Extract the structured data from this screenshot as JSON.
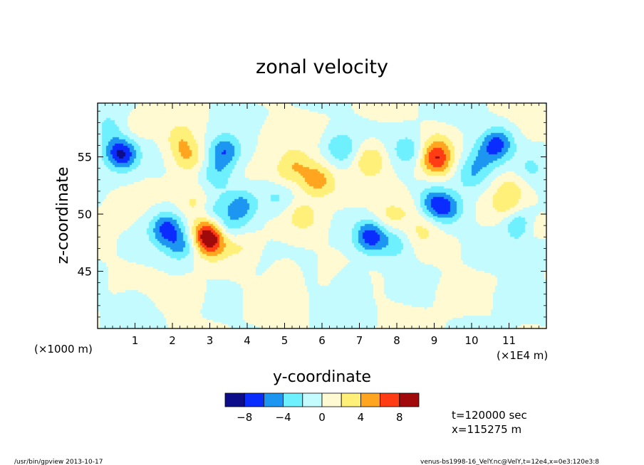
{
  "chart_data": {
    "type": "heatmap",
    "title": "zonal velocity",
    "xlabel": "y-coordinate",
    "ylabel": "z-coordinate",
    "x_unit_left": "(×1000 m)",
    "x_unit_right": "(×1E4 m)",
    "xlim": [
      0,
      12
    ],
    "ylim": [
      40,
      59.7
    ],
    "x_ticks": [
      1,
      2,
      3,
      4,
      5,
      6,
      7,
      8,
      9,
      10,
      11
    ],
    "y_ticks": [
      45,
      50,
      55
    ],
    "x_tick_labels": [
      "1",
      "2",
      "3",
      "4",
      "5",
      "6",
      "7",
      "8",
      "9",
      "10",
      "11"
    ],
    "y_tick_labels": [
      "45",
      "50",
      "55"
    ],
    "grid": false,
    "colorbar": {
      "bounds": [
        -10,
        -8,
        -6,
        -4,
        -2,
        0,
        2,
        4,
        6,
        8,
        10
      ],
      "colors": [
        "#0d0d8a",
        "#0a2cff",
        "#1c96f0",
        "#6ff0ff",
        "#c4fbff",
        "#fffad2",
        "#fff07a",
        "#ffa51f",
        "#ff3c14",
        "#a00a0a"
      ],
      "tick_values": [
        -8,
        -4,
        0,
        4,
        8
      ],
      "tick_labels": [
        "−8",
        "−4",
        "0",
        "4",
        "8"
      ]
    },
    "features": [
      {
        "y": 0.7,
        "z": 55.2,
        "amp": -6.5
      },
      {
        "y": 0.45,
        "z": 55.5,
        "amp": -3
      },
      {
        "y": 0.3,
        "z": 57.5,
        "amp": -2.5
      },
      {
        "y": 0.6,
        "z": 50.5,
        "amp": 1.5
      },
      {
        "y": 1.0,
        "z": 57.5,
        "amp": 1.2
      },
      {
        "y": 2.4,
        "z": 55.0,
        "amp": 4
      },
      {
        "y": 2.2,
        "z": 56.6,
        "amp": 3
      },
      {
        "y": 2.9,
        "z": 48.3,
        "amp": 6.5
      },
      {
        "y": 3.05,
        "z": 47.5,
        "amp": 5.5
      },
      {
        "y": 2.6,
        "z": 51.0,
        "amp": 2.5
      },
      {
        "y": 1.8,
        "z": 48.5,
        "amp": -4.5
      },
      {
        "y": 2.25,
        "z": 47.3,
        "amp": -4.5
      },
      {
        "y": 1.9,
        "z": 49.3,
        "amp": -2.5
      },
      {
        "y": 3.4,
        "z": 55.5,
        "amp": -6
      },
      {
        "y": 3.2,
        "z": 53.5,
        "amp": -3.5
      },
      {
        "y": 3.85,
        "z": 50.8,
        "amp": -4.5
      },
      {
        "y": 3.55,
        "z": 48.8,
        "amp": -3
      },
      {
        "y": 3.1,
        "z": 50.3,
        "amp": -2.2
      },
      {
        "y": 3.8,
        "z": 47.3,
        "amp": 2.2
      },
      {
        "y": 4.8,
        "z": 56.8,
        "amp": 1.2
      },
      {
        "y": 5.3,
        "z": 54.5,
        "amp": 3
      },
      {
        "y": 5.0,
        "z": 53.5,
        "amp": 2.2
      },
      {
        "y": 5.8,
        "z": 53.1,
        "amp": 5
      },
      {
        "y": 5.5,
        "z": 49.8,
        "amp": 2.8
      },
      {
        "y": 4.8,
        "z": 51.5,
        "amp": -2.5
      },
      {
        "y": 6.5,
        "z": 55.8,
        "amp": -4
      },
      {
        "y": 6.2,
        "z": 52.5,
        "amp": 1.5
      },
      {
        "y": 7.3,
        "z": 54.7,
        "amp": 4.2
      },
      {
        "y": 7.3,
        "z": 48.0,
        "amp": -7
      },
      {
        "y": 7.8,
        "z": 49.8,
        "amp": 2.5
      },
      {
        "y": 7.95,
        "z": 47.3,
        "amp": -3
      },
      {
        "y": 8.3,
        "z": 55.6,
        "amp": -3.5
      },
      {
        "y": 8.7,
        "z": 48.5,
        "amp": 2
      },
      {
        "y": 8.4,
        "z": 50.5,
        "amp": 1.5
      },
      {
        "y": 9.05,
        "z": 54.7,
        "amp": 6.5
      },
      {
        "y": 8.95,
        "z": 51.0,
        "amp": -4.5
      },
      {
        "y": 9.35,
        "z": 50.5,
        "amp": -5
      },
      {
        "y": 9.1,
        "z": 56.0,
        "amp": 2.5
      },
      {
        "y": 10.0,
        "z": 53.5,
        "amp": -3.5
      },
      {
        "y": 10.3,
        "z": 55.0,
        "amp": -3
      },
      {
        "y": 10.7,
        "z": 56.2,
        "amp": -6.5
      },
      {
        "y": 10.9,
        "z": 51.0,
        "amp": 2.8
      },
      {
        "y": 11.1,
        "z": 52.5,
        "amp": 2.2
      },
      {
        "y": 11.3,
        "z": 49.0,
        "amp": -5
      },
      {
        "y": 11.6,
        "z": 48.6,
        "amp": 2.8
      },
      {
        "y": 11.6,
        "z": 54.0,
        "amp": -2.2
      },
      {
        "y": 11.7,
        "z": 46.8,
        "amp": -2.2
      },
      {
        "y": 6.8,
        "z": 44.0,
        "amp": -1.5
      },
      {
        "y": 2.5,
        "z": 43.0,
        "amp": 1.2
      },
      {
        "y": 9.5,
        "z": 43.0,
        "amp": 1.2
      },
      {
        "y": 5.0,
        "z": 44.8,
        "amp": 1.2
      },
      {
        "y": 1.0,
        "z": 42.0,
        "amp": -1.2
      },
      {
        "y": 11.0,
        "z": 42.5,
        "amp": -1.5
      }
    ]
  },
  "annotations": {
    "time": "t=120000 sec",
    "position": "x=115275 m"
  },
  "footer": {
    "left": "/usr/bin/gpview   2013-10-17",
    "right": "venus-bs1998-16_VelY.nc@VelY,t=12e4,x=0e3:120e3:8"
  }
}
